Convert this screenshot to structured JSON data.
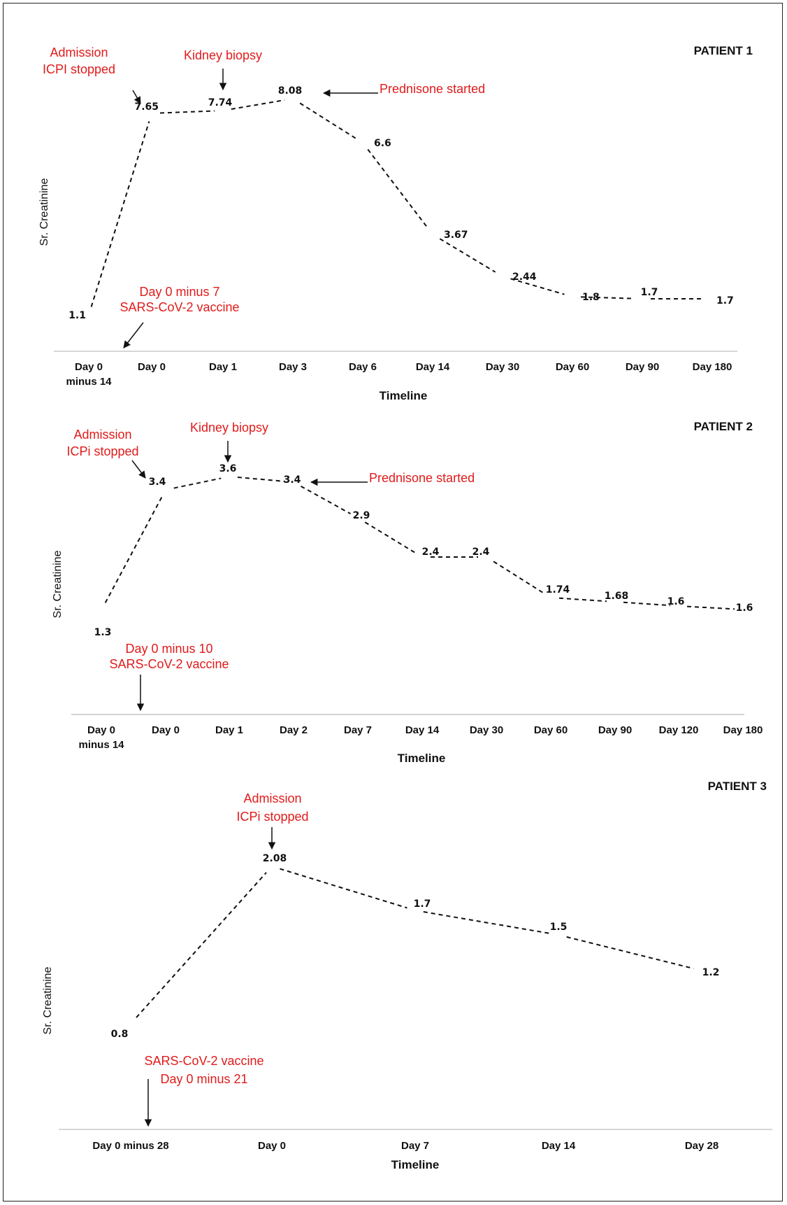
{
  "chart_data": [
    {
      "type": "line",
      "title": "PATIENT 1",
      "xlabel": "Timeline",
      "ylabel": "Sr. Creatinine",
      "categories": [
        [
          "Day 0",
          "minus 14"
        ],
        [
          "Day 0"
        ],
        [
          "Day 1"
        ],
        [
          "Day 3"
        ],
        [
          "Day 6"
        ],
        [
          "Day 14"
        ],
        [
          "Day 30"
        ],
        [
          "Day 60"
        ],
        [
          "Day 90"
        ],
        [
          "Day 180"
        ]
      ],
      "values": [
        1.1,
        7.65,
        7.74,
        8.08,
        6.6,
        3.67,
        2.44,
        1.8,
        1.7,
        1.7
      ],
      "labels": [
        "1.1",
        "7.65",
        "7.74",
        "8.08",
        "6.6",
        "3.67",
        "2.44",
        "1.8",
        "1.7",
        "1.7"
      ],
      "annotations": [
        {
          "lines": [
            "Admission",
            "ICPI stopped"
          ],
          "point": 1
        },
        {
          "lines": [
            "Kidney biopsy"
          ],
          "point": 2
        },
        {
          "lines": [
            "Prednisone started"
          ],
          "point": 3
        },
        {
          "lines": [
            "Day 0 minus 7",
            "SARS-CoV-2 vaccine"
          ]
        }
      ]
    },
    {
      "type": "line",
      "title": "PATIENT 2",
      "xlabel": "Timeline",
      "ylabel": "Sr. Creatinine",
      "categories": [
        [
          "Day 0",
          "minus 14"
        ],
        [
          "Day 0"
        ],
        [
          "Day 1"
        ],
        [
          "Day 2"
        ],
        [
          "Day 7"
        ],
        [
          "Day 14"
        ],
        [
          "Day 30"
        ],
        [
          "Day 60"
        ],
        [
          "Day 90"
        ],
        [
          "Day 120"
        ],
        [
          "Day 180"
        ]
      ],
      "values": [
        1.3,
        3.4,
        3.6,
        3.4,
        2.9,
        2.4,
        2.4,
        1.74,
        1.68,
        1.6,
        1.6
      ],
      "labels": [
        "1.3",
        "3.4",
        "3.6",
        "3.4",
        "2.9",
        "2.4",
        "2.4",
        "1.74",
        "1.68",
        "1.6",
        "1.6"
      ],
      "annotations": [
        {
          "lines": [
            "Admission",
            "ICPi stopped"
          ],
          "point": 1
        },
        {
          "lines": [
            "Kidney biopsy"
          ],
          "point": 2
        },
        {
          "lines": [
            "Prednisone started"
          ],
          "point": 3
        },
        {
          "lines": [
            "Day 0 minus 10",
            "SARS-CoV-2 vaccine"
          ]
        }
      ]
    },
    {
      "type": "line",
      "title": "PATIENT 3",
      "xlabel": "Timeline",
      "ylabel": "Sr. Creatinine",
      "categories": [
        [
          "Day 0 minus 28"
        ],
        [
          "Day 0"
        ],
        [
          "Day 7"
        ],
        [
          "Day 14"
        ],
        [
          "Day 28"
        ]
      ],
      "values": [
        0.8,
        2.08,
        1.7,
        1.5,
        1.2
      ],
      "labels": [
        "0.8",
        "2.08",
        "1.7",
        "1.5",
        "1.2"
      ],
      "annotations": [
        {
          "lines": [
            "Admission",
            "ICPi stopped"
          ],
          "point": 1
        },
        {
          "lines": [
            "SARS-CoV-2 vaccine",
            "Day 0 minus 21"
          ]
        }
      ]
    }
  ],
  "colors": {
    "annotation": "#e11b1b",
    "line": "#111111",
    "axis": "#c8c8c8"
  }
}
